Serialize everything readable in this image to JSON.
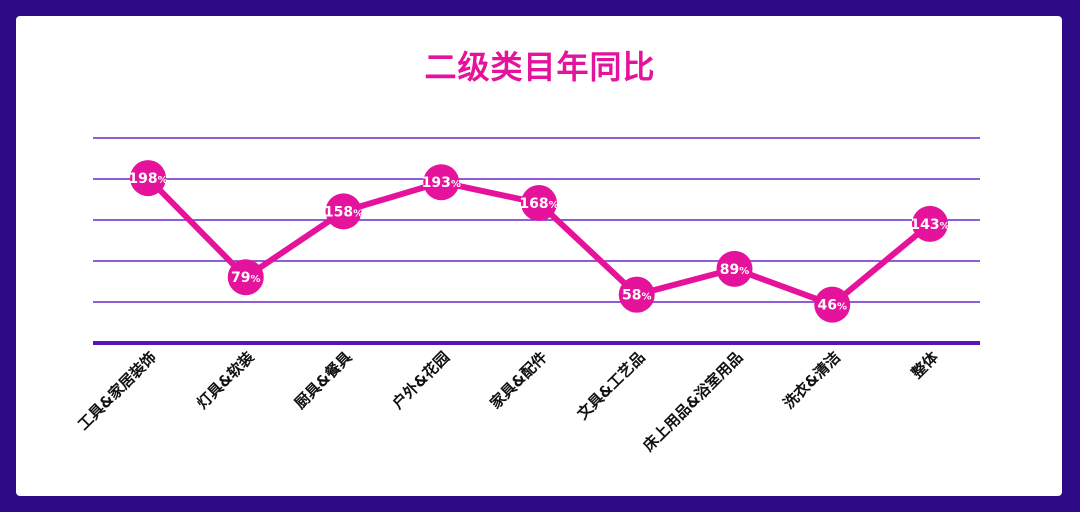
{
  "colors": {
    "background": "#2f0a86",
    "card": "#ffffff",
    "accent": "#e5129b",
    "grid": "#6a28c8",
    "axis": "#5a13c0"
  },
  "chart_data": {
    "type": "line",
    "title": "二级类目年同比",
    "xlabel": "",
    "ylabel": "",
    "categories": [
      "工具&家居装饰",
      "灯具&软装",
      "厨具&餐具",
      "户外&花园",
      "家具&配件",
      "文具&工艺品",
      "床上用品&浴室用品",
      "洗衣&清洁",
      "整体"
    ],
    "values": [
      198,
      79,
      158,
      193,
      168,
      58,
      89,
      46,
      143
    ],
    "data_labels": [
      "198",
      "79",
      "158",
      "193",
      "168",
      "58",
      "89",
      "46",
      "143"
    ],
    "value_suffix": "%",
    "grid": true,
    "legend": "none"
  }
}
